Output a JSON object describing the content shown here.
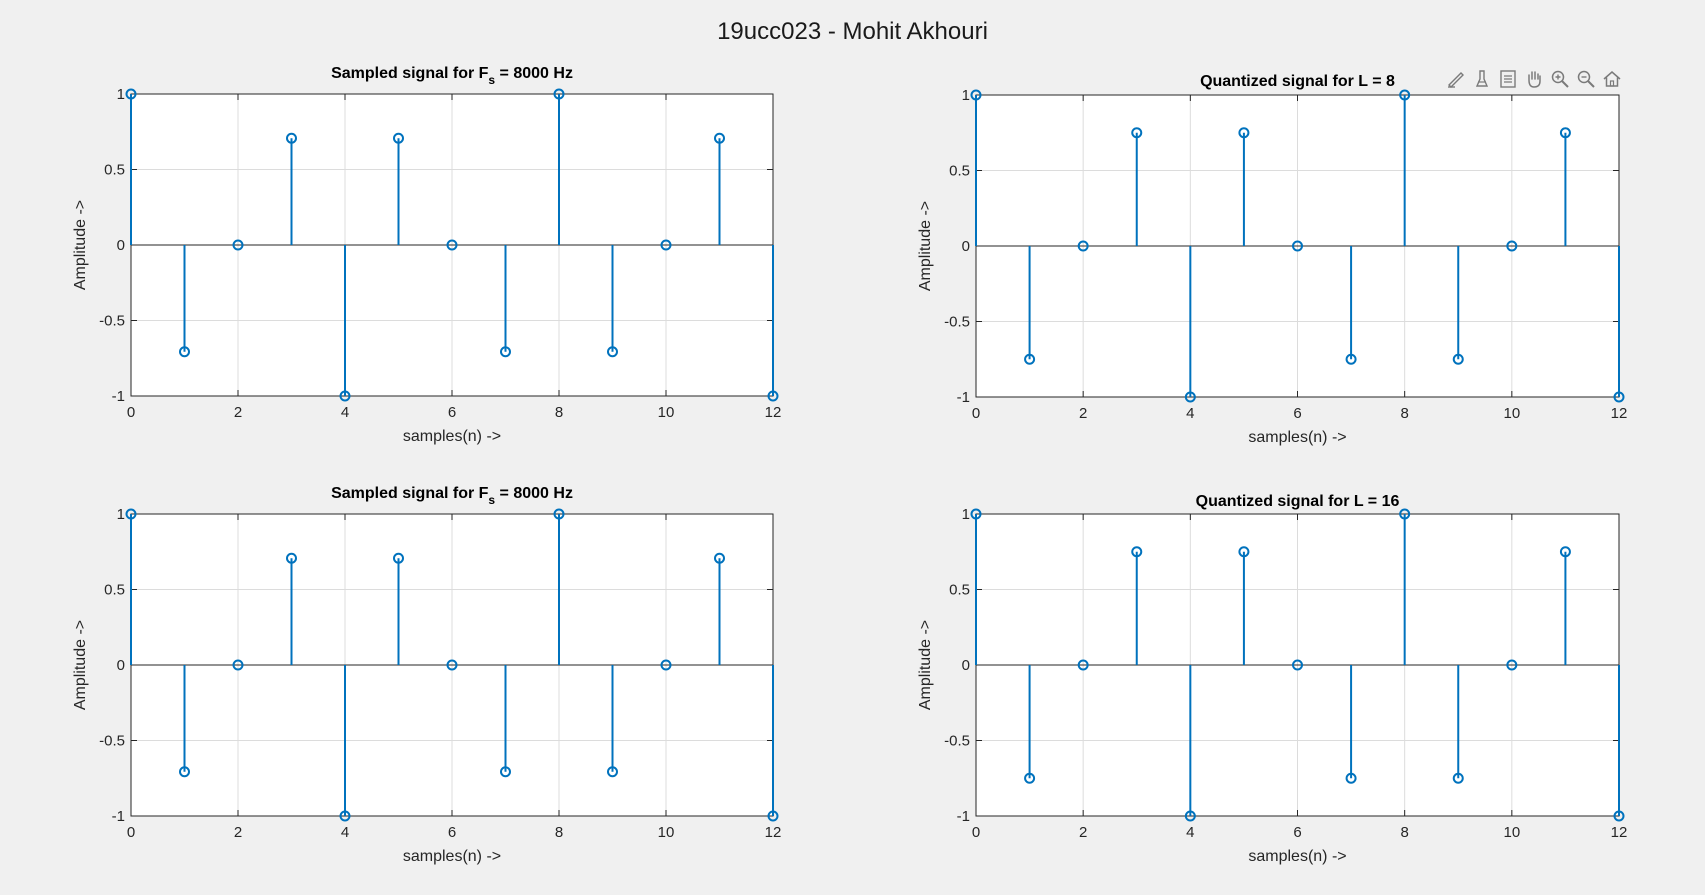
{
  "figure": {
    "title": "19ucc023 - Mohit Akhouri"
  },
  "toolbar": {
    "icons": [
      "brush-edit-icon",
      "data-tips-icon",
      "legend-icon",
      "pan-hand-icon",
      "zoom-in-icon",
      "zoom-out-icon",
      "home-restore-icon"
    ]
  },
  "colors": {
    "stem": "#0072BD",
    "grid": "#dcdcdc",
    "axis": "#262626",
    "background": "#ffffff",
    "page": "#f0f0f0"
  },
  "chart_data": [
    {
      "type": "stem",
      "title": "Sampled signal for F",
      "title_sub": "s",
      "title_suffix": " = 8000 Hz",
      "xlabel": "samples(n) ->",
      "ylabel": "Amplitude ->",
      "xlim": [
        0,
        12
      ],
      "ylim": [
        -1,
        1
      ],
      "xticks": [
        "0",
        "2",
        "4",
        "6",
        "8",
        "10",
        "12"
      ],
      "yticks": [
        "-1",
        "-0.5",
        "0",
        "0.5",
        "1"
      ],
      "grid": true,
      "x": [
        0,
        1,
        2,
        3,
        4,
        5,
        6,
        7,
        8,
        9,
        10,
        11,
        12
      ],
      "y": [
        1,
        -0.7071,
        0,
        0.7071,
        -1,
        0.7071,
        0,
        -0.7071,
        1,
        -0.7071,
        0,
        0.7071,
        -1
      ]
    },
    {
      "type": "stem",
      "title": "Quantized signal for L = 8",
      "title_sub": "",
      "title_suffix": "",
      "xlabel": "samples(n) ->",
      "ylabel": "Amplitude ->",
      "xlim": [
        0,
        12
      ],
      "ylim": [
        -1,
        1
      ],
      "xticks": [
        "0",
        "2",
        "4",
        "6",
        "8",
        "10",
        "12"
      ],
      "yticks": [
        "-1",
        "-0.5",
        "0",
        "0.5",
        "1"
      ],
      "grid": true,
      "x": [
        0,
        1,
        2,
        3,
        4,
        5,
        6,
        7,
        8,
        9,
        10,
        11,
        12
      ],
      "y": [
        1,
        -0.75,
        0,
        0.75,
        -1,
        0.75,
        0,
        -0.75,
        1,
        -0.75,
        0,
        0.75,
        -1
      ]
    },
    {
      "type": "stem",
      "title": "Sampled signal for F",
      "title_sub": "s",
      "title_suffix": " = 8000 Hz",
      "xlabel": "samples(n) ->",
      "ylabel": "Amplitude ->",
      "xlim": [
        0,
        12
      ],
      "ylim": [
        -1,
        1
      ],
      "xticks": [
        "0",
        "2",
        "4",
        "6",
        "8",
        "10",
        "12"
      ],
      "yticks": [
        "-1",
        "-0.5",
        "0",
        "0.5",
        "1"
      ],
      "grid": true,
      "x": [
        0,
        1,
        2,
        3,
        4,
        5,
        6,
        7,
        8,
        9,
        10,
        11,
        12
      ],
      "y": [
        1,
        -0.7071,
        0,
        0.7071,
        -1,
        0.7071,
        0,
        -0.7071,
        1,
        -0.7071,
        0,
        0.7071,
        -1
      ]
    },
    {
      "type": "stem",
      "title": "Quantized signal for L = 16",
      "title_sub": "",
      "title_suffix": "",
      "xlabel": "samples(n) ->",
      "ylabel": "Amplitude ->",
      "xlim": [
        0,
        12
      ],
      "ylim": [
        -1,
        1
      ],
      "xticks": [
        "0",
        "2",
        "4",
        "6",
        "8",
        "10",
        "12"
      ],
      "yticks": [
        "-1",
        "-0.5",
        "0",
        "0.5",
        "1"
      ],
      "grid": true,
      "x": [
        0,
        1,
        2,
        3,
        4,
        5,
        6,
        7,
        8,
        9,
        10,
        11,
        12
      ],
      "y": [
        1,
        -0.75,
        0,
        0.75,
        -1,
        0.75,
        0,
        -0.75,
        1,
        -0.75,
        0,
        0.75,
        -1
      ]
    }
  ]
}
